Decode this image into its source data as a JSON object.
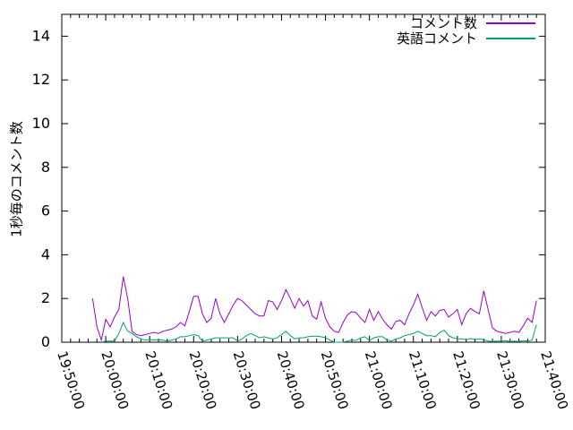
{
  "chart_data": {
    "type": "line",
    "title": "",
    "xlabel": "",
    "ylabel": "1秒毎のコメント数",
    "x_origin_label": "19:50:00",
    "x_unit": "minutes since 19:50:00",
    "xlim": [
      0,
      110
    ],
    "ylim": [
      0,
      15
    ],
    "grid": false,
    "legend_position": "top-right-inside",
    "xticks": {
      "minutes": [
        0,
        10,
        20,
        30,
        40,
        50,
        60,
        70,
        80,
        90,
        100,
        110
      ],
      "labels": [
        "19:50:00",
        "20:00:00",
        "20:10:00",
        "20:20:00",
        "20:30:00",
        "20:40:00",
        "20:50:00",
        "21:00:00",
        "21:10:00",
        "21:20:00",
        "21:30:00",
        "21:40:00"
      ],
      "minor_interval_minutes": 2
    },
    "yticks": [
      0,
      2,
      4,
      6,
      8,
      10,
      12,
      14
    ],
    "series": [
      {
        "name": "コメント数",
        "color": "#9400d3",
        "points": [
          [
            7,
            2.0
          ],
          [
            8,
            0.7
          ],
          [
            9,
            0.1
          ],
          [
            10,
            1.05
          ],
          [
            11,
            0.7
          ],
          [
            12,
            1.15
          ],
          [
            13,
            1.5
          ],
          [
            14,
            3.0
          ],
          [
            15,
            2.0
          ],
          [
            16,
            0.5
          ],
          [
            17,
            0.35
          ],
          [
            18,
            0.3
          ],
          [
            19,
            0.35
          ],
          [
            20,
            0.4
          ],
          [
            21,
            0.45
          ],
          [
            22,
            0.4
          ],
          [
            23,
            0.5
          ],
          [
            24,
            0.55
          ],
          [
            25,
            0.6
          ],
          [
            26,
            0.7
          ],
          [
            27,
            0.9
          ],
          [
            28,
            0.75
          ],
          [
            29,
            1.4
          ],
          [
            30,
            2.1
          ],
          [
            31,
            2.1
          ],
          [
            32,
            1.3
          ],
          [
            33,
            0.9
          ],
          [
            34,
            1.1
          ],
          [
            35,
            2.0
          ],
          [
            36,
            1.3
          ],
          [
            37,
            0.9
          ],
          [
            38,
            1.3
          ],
          [
            39,
            1.7
          ],
          [
            40,
            2.0
          ],
          [
            41,
            1.9
          ],
          [
            42,
            1.7
          ],
          [
            43,
            1.5
          ],
          [
            44,
            1.3
          ],
          [
            45,
            1.2
          ],
          [
            46,
            1.2
          ],
          [
            47,
            1.9
          ],
          [
            48,
            1.85
          ],
          [
            49,
            1.5
          ],
          [
            50,
            1.9
          ],
          [
            51,
            2.4
          ],
          [
            52,
            2.0
          ],
          [
            53,
            1.55
          ],
          [
            54,
            2.0
          ],
          [
            55,
            1.65
          ],
          [
            56,
            1.9
          ],
          [
            57,
            1.2
          ],
          [
            58,
            1.05
          ],
          [
            59,
            1.85
          ],
          [
            60,
            1.1
          ],
          [
            61,
            0.7
          ],
          [
            62,
            0.5
          ],
          [
            63,
            0.45
          ],
          [
            64,
            0.9
          ],
          [
            65,
            1.25
          ],
          [
            66,
            1.4
          ],
          [
            67,
            1.35
          ],
          [
            68,
            1.1
          ],
          [
            69,
            0.9
          ],
          [
            70,
            1.5
          ],
          [
            71,
            1.0
          ],
          [
            72,
            1.4
          ],
          [
            73,
            1.05
          ],
          [
            74,
            0.8
          ],
          [
            75,
            0.6
          ],
          [
            76,
            0.95
          ],
          [
            77,
            1.0
          ],
          [
            78,
            0.8
          ],
          [
            79,
            1.3
          ],
          [
            80,
            1.7
          ],
          [
            81,
            2.2
          ],
          [
            82,
            1.6
          ],
          [
            83,
            1.0
          ],
          [
            84,
            1.4
          ],
          [
            85,
            1.2
          ],
          [
            86,
            1.45
          ],
          [
            87,
            1.5
          ],
          [
            88,
            1.15
          ],
          [
            89,
            1.3
          ],
          [
            90,
            1.5
          ],
          [
            91,
            0.8
          ],
          [
            92,
            1.3
          ],
          [
            93,
            1.55
          ],
          [
            94,
            1.4
          ],
          [
            95,
            1.3
          ],
          [
            96,
            2.35
          ],
          [
            97,
            1.5
          ],
          [
            98,
            0.65
          ],
          [
            99,
            0.5
          ],
          [
            100,
            0.45
          ],
          [
            101,
            0.4
          ],
          [
            102,
            0.45
          ],
          [
            103,
            0.5
          ],
          [
            104,
            0.45
          ],
          [
            105,
            0.75
          ],
          [
            106,
            1.1
          ],
          [
            107,
            0.9
          ],
          [
            108,
            1.9
          ]
        ]
      },
      {
        "name": "英語コメント",
        "color": "#009e73",
        "points": [
          [
            9,
            0.0
          ],
          [
            10,
            0.05
          ],
          [
            11,
            0.05
          ],
          [
            12,
            0.05
          ],
          [
            13,
            0.4
          ],
          [
            14,
            0.9
          ],
          [
            15,
            0.5
          ],
          [
            16,
            0.4
          ],
          [
            17,
            0.25
          ],
          [
            18,
            0.15
          ],
          [
            19,
            0.1
          ],
          [
            20,
            0.12
          ],
          [
            21,
            0.1
          ],
          [
            22,
            0.12
          ],
          [
            23,
            0.1
          ],
          [
            24,
            0.05
          ],
          [
            25,
            0.1
          ],
          [
            26,
            0.15
          ],
          [
            27,
            0.25
          ],
          [
            28,
            0.25
          ],
          [
            29,
            0.3
          ],
          [
            30,
            0.35
          ],
          [
            31,
            0.3
          ],
          [
            32,
            0.05
          ],
          [
            33,
            0.1
          ],
          [
            34,
            0.15
          ],
          [
            35,
            0.2
          ],
          [
            36,
            0.2
          ],
          [
            37,
            0.2
          ],
          [
            38,
            0.2
          ],
          [
            39,
            0.2
          ],
          [
            40,
            0.05
          ],
          [
            41,
            0.15
          ],
          [
            42,
            0.3
          ],
          [
            43,
            0.4
          ],
          [
            44,
            0.3
          ],
          [
            45,
            0.2
          ],
          [
            46,
            0.25
          ],
          [
            47,
            0.2
          ],
          [
            48,
            0.15
          ],
          [
            49,
            0.2
          ],
          [
            50,
            0.35
          ],
          [
            51,
            0.5
          ],
          [
            52,
            0.3
          ],
          [
            53,
            0.15
          ],
          [
            54,
            0.2
          ],
          [
            55,
            0.2
          ],
          [
            56,
            0.25
          ],
          [
            57,
            0.28
          ],
          [
            58,
            0.28
          ],
          [
            59,
            0.25
          ],
          [
            60,
            0.2
          ],
          [
            61,
            0.1
          ],
          [
            62,
            0.0
          ],
          [
            63,
            0.0
          ],
          [
            64,
            0.0
          ],
          [
            65,
            0.05
          ],
          [
            66,
            0.1
          ],
          [
            67,
            0.08
          ],
          [
            68,
            0.2
          ],
          [
            69,
            0.25
          ],
          [
            70,
            0.08
          ],
          [
            71,
            0.2
          ],
          [
            72,
            0.25
          ],
          [
            73,
            0.25
          ],
          [
            74,
            0.1
          ],
          [
            75,
            0.05
          ],
          [
            76,
            0.15
          ],
          [
            77,
            0.2
          ],
          [
            78,
            0.3
          ],
          [
            79,
            0.35
          ],
          [
            80,
            0.4
          ],
          [
            81,
            0.5
          ],
          [
            82,
            0.4
          ],
          [
            83,
            0.3
          ],
          [
            84,
            0.3
          ],
          [
            85,
            0.25
          ],
          [
            86,
            0.45
          ],
          [
            87,
            0.55
          ],
          [
            88,
            0.3
          ],
          [
            89,
            0.2
          ],
          [
            90,
            0.15
          ],
          [
            91,
            0.15
          ],
          [
            92,
            0.12
          ],
          [
            93,
            0.17
          ],
          [
            94,
            0.12
          ],
          [
            95,
            0.15
          ],
          [
            96,
            0.12
          ],
          [
            97,
            0.05
          ],
          [
            98,
            0.03
          ],
          [
            99,
            0.05
          ],
          [
            100,
            0.05
          ],
          [
            101,
            0.07
          ],
          [
            102,
            0.03
          ],
          [
            103,
            0.05
          ],
          [
            104,
            0.03
          ],
          [
            105,
            0.07
          ],
          [
            106,
            0.05
          ],
          [
            107,
            0.1
          ],
          [
            108,
            0.8
          ]
        ]
      }
    ],
    "axis_color": "#000000",
    "background_color": "#ffffff"
  }
}
